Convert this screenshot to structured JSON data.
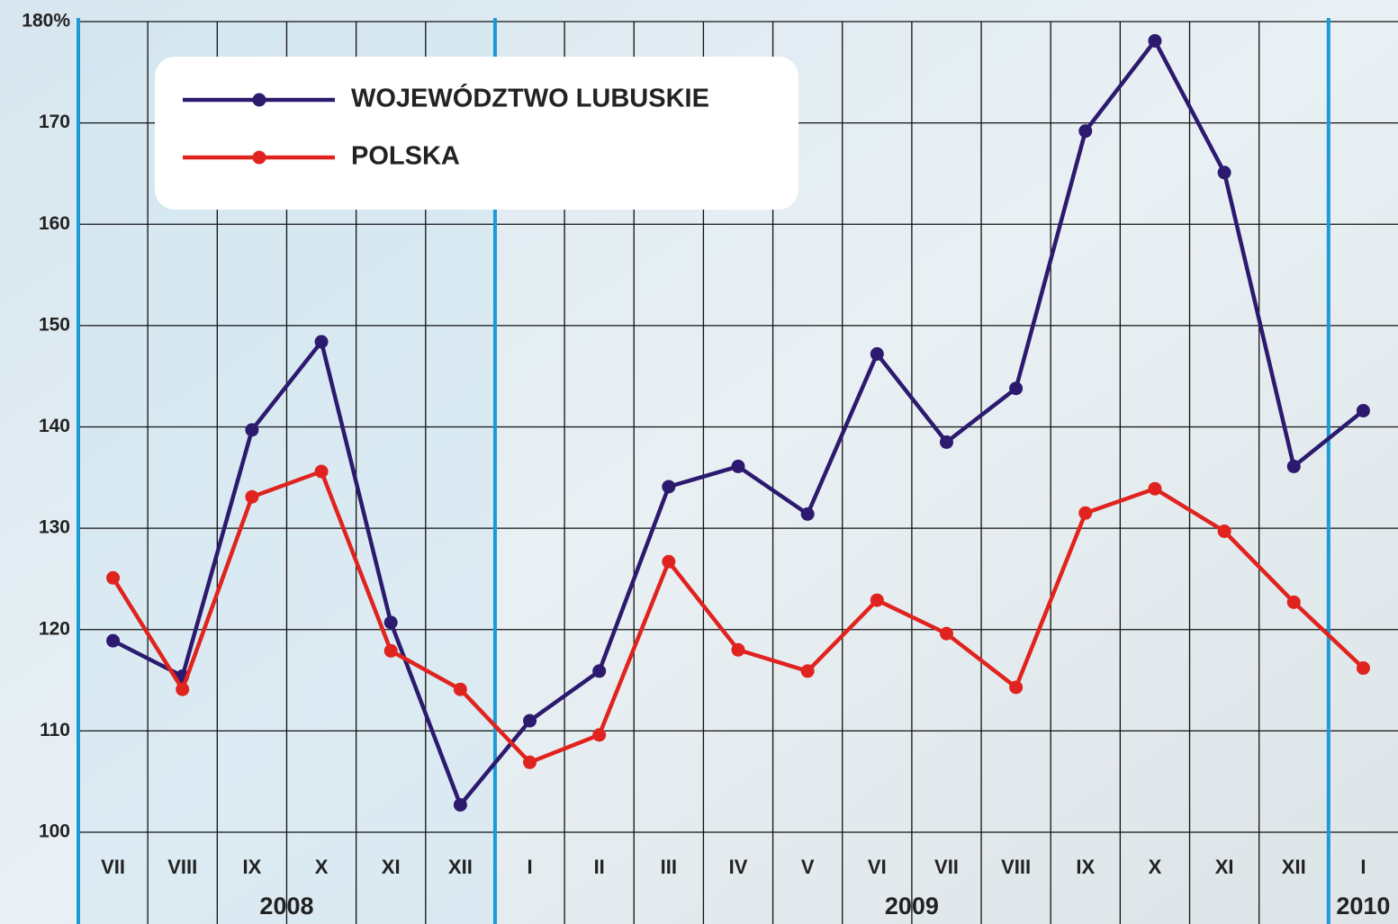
{
  "chart_data": {
    "type": "line",
    "categories": [
      "VII",
      "VIII",
      "IX",
      "X",
      "XI",
      "XII",
      "I",
      "II",
      "III",
      "IV",
      "V",
      "VI",
      "VII",
      "VIII",
      "IX",
      "X",
      "XI",
      "XII",
      "I"
    ],
    "years": [
      "2008",
      "2009",
      "2010"
    ],
    "series": [
      {
        "name": "WOJEWÓDZTWO LUBUSKIE",
        "color": "#2b1a6e",
        "values": [
          118.9,
          115.4,
          139.7,
          148.4,
          120.7,
          102.7,
          111.0,
          115.9,
          134.1,
          136.1,
          131.4,
          147.2,
          138.5,
          143.8,
          169.2,
          178.1,
          165.1,
          136.1,
          141.6
        ]
      },
      {
        "name": "POLSKA",
        "color": "#e0231e",
        "values": [
          125.1,
          114.1,
          133.1,
          135.6,
          117.9,
          114.1,
          106.9,
          109.6,
          126.7,
          118.0,
          115.9,
          122.9,
          119.6,
          114.3,
          131.5,
          133.9,
          129.7,
          122.7,
          116.2
        ]
      }
    ],
    "ylim": [
      100,
      180
    ],
    "yticks": [
      100,
      110,
      120,
      130,
      140,
      150,
      160,
      170,
      {
        "value": 180,
        "label": "180%"
      }
    ],
    "grid": true
  }
}
